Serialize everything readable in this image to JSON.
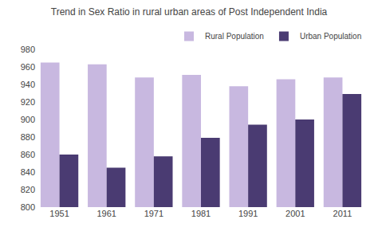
{
  "chart_data": {
    "type": "bar",
    "title": "Trend in Sex Ratio in rural urban areas of Post Independent India",
    "categories": [
      "1951",
      "1961",
      "1971",
      "1981",
      "1991",
      "2001",
      "2011"
    ],
    "series": [
      {
        "name": "Rural Population",
        "color": "#c8b8e0",
        "values": [
          965,
          963,
          948,
          951,
          938,
          946,
          948
        ]
      },
      {
        "name": "Urban Population",
        "color": "#4a3b72",
        "values": [
          860,
          845,
          858,
          879,
          894,
          900,
          929
        ]
      }
    ],
    "ylim": [
      800,
      980
    ],
    "yticks": [
      800,
      820,
      840,
      860,
      880,
      900,
      920,
      940,
      960,
      980
    ],
    "grid": false,
    "legend": "upper right"
  }
}
